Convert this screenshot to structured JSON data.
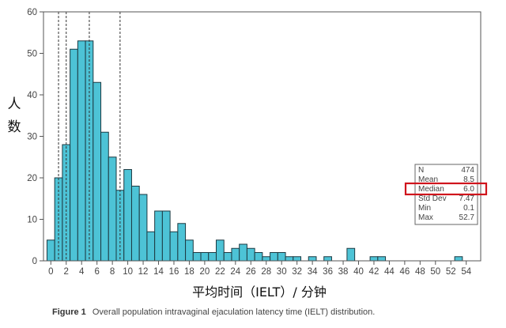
{
  "chart_data": {
    "type": "bar",
    "title": "",
    "xlabel": "平均时间（IELT）/ 分钟",
    "ylabel": "人数",
    "caption_label": "Figure 1",
    "caption_text": "Overall population intravaginal ejaculation latency time (IELT) distribution.",
    "xlim": [
      0,
      54
    ],
    "ylim": [
      0,
      60
    ],
    "xticks": [
      0,
      2,
      4,
      6,
      8,
      10,
      12,
      14,
      16,
      18,
      20,
      22,
      24,
      26,
      28,
      30,
      32,
      34,
      36,
      38,
      40,
      42,
      44,
      46,
      48,
      50,
      52,
      54
    ],
    "yticks": [
      0,
      10,
      20,
      30,
      40,
      50,
      60
    ],
    "bin_width": 1,
    "bins": [
      0,
      1,
      2,
      3,
      4,
      5,
      6,
      7,
      8,
      9,
      10,
      11,
      12,
      13,
      14,
      15,
      16,
      17,
      18,
      19,
      20,
      21,
      22,
      23,
      24,
      25,
      26,
      27,
      28,
      29,
      30,
      31,
      32,
      34,
      36,
      39,
      42,
      43,
      53
    ],
    "values": [
      5,
      20,
      28,
      51,
      53,
      53,
      43,
      31,
      25,
      17,
      22,
      18,
      16,
      7,
      12,
      12,
      7,
      9,
      5,
      2,
      2,
      2,
      5,
      2,
      3,
      4,
      3,
      2,
      1,
      2,
      2,
      1,
      1,
      1,
      1,
      3,
      1,
      1,
      1
    ],
    "reference_lines_x": [
      1,
      2,
      5,
      9
    ],
    "grid": false,
    "bar_color": "#4dc3d6",
    "stats_box": {
      "position": "right",
      "rows": [
        {
          "label": "N",
          "value": "474"
        },
        {
          "label": "Mean",
          "value": "8.5"
        },
        {
          "label": "Median",
          "value": "6.0",
          "highlighted": true
        },
        {
          "label": "Std Dev",
          "value": "7.47"
        },
        {
          "label": "Min",
          "value": "0.1"
        },
        {
          "label": "Max",
          "value": "52.7"
        }
      ],
      "highlight_color": "#d0141c"
    }
  }
}
